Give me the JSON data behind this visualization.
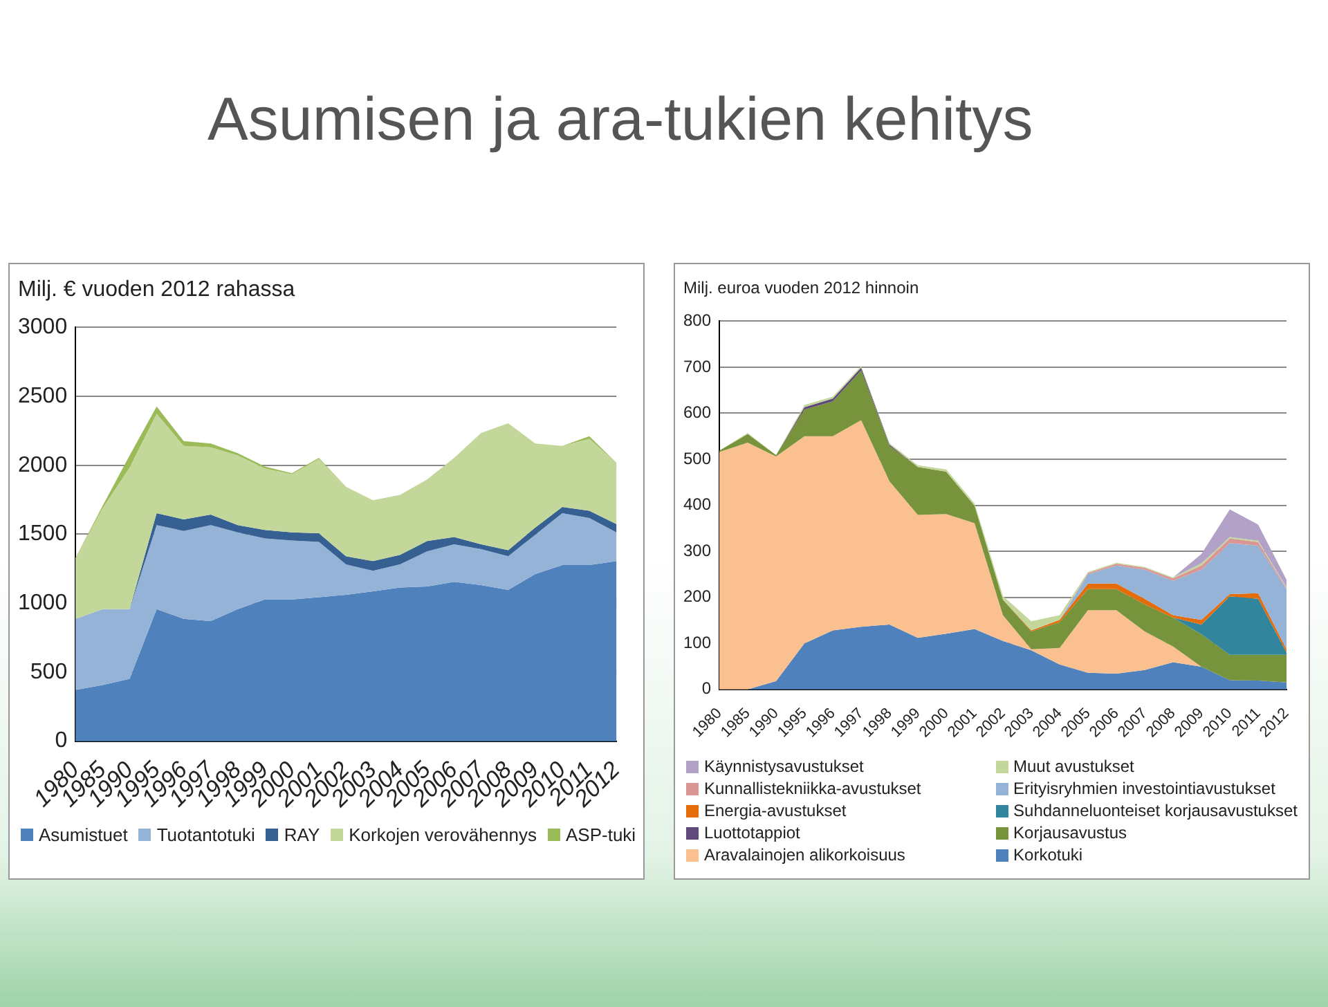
{
  "chart_data": [
    {
      "type": "area",
      "title": "Asumisen ja ara-tukien kehitys",
      "ylabel": "Milj. € vuoden 2012 rahassa",
      "categories": [
        "1980",
        "1985",
        "1990",
        "1995",
        "1996",
        "1997",
        "1998",
        "1999",
        "2000",
        "2001",
        "2002",
        "2003",
        "2004",
        "2005",
        "2006",
        "2007",
        "2008",
        "2009",
        "2010",
        "2011",
        "2012"
      ],
      "series": [
        {
          "name": "Asumistuet",
          "color": "#4f81bd",
          "values": [
            372,
            407,
            452,
            957,
            887,
            870,
            957,
            1027,
            1027,
            1044,
            1061,
            1086,
            1114,
            1121,
            1155,
            1131,
            1096,
            1211,
            1277,
            1277,
            1305
          ]
        },
        {
          "name": "Tuotantotuki",
          "color": "#95b3d7",
          "values": [
            515,
            550,
            505,
            609,
            637,
            696,
            557,
            442,
            428,
            400,
            220,
            149,
            167,
            254,
            272,
            261,
            244,
            285,
            376,
            341,
            209
          ]
        },
        {
          "name": "RAY",
          "color": "#366092",
          "values": [
            0,
            0,
            0,
            87,
            84,
            77,
            52,
            62,
            59,
            63,
            59,
            70,
            69,
            76,
            52,
            35,
            45,
            53,
            45,
            52,
            59
          ]
        },
        {
          "name": "Korkojen verovähennys",
          "color": "#c4d79b",
          "values": [
            442,
            731,
            1027,
            720,
            532,
            487,
            505,
            446,
            421,
            539,
            504,
            442,
            435,
            446,
            574,
            807,
            919,
            609,
            442,
            522,
            445
          ]
        },
        {
          "name": "ASP-tuki",
          "color": "#9bbb59",
          "values": [
            0,
            17,
            87,
            53,
            35,
            28,
            17,
            14,
            7,
            7,
            0,
            0,
            0,
            0,
            0,
            0,
            0,
            0,
            0,
            18,
            0
          ]
        }
      ],
      "stacked": true,
      "ylim": [
        0,
        3000
      ],
      "yticks": [
        0,
        500,
        1000,
        1500,
        2000,
        2500,
        3000
      ],
      "grid": "y",
      "legend": "bottom"
    },
    {
      "type": "area",
      "ylabel": "Milj. euroa vuoden 2012 hinnoin",
      "categories": [
        "1980",
        "1985",
        "1990",
        "1995",
        "1996",
        "1997",
        "1998",
        "1999",
        "2000",
        "2001",
        "2002",
        "2003",
        "2004",
        "2005",
        "2006",
        "2007",
        "2008",
        "2009",
        "2010",
        "2011",
        "2012"
      ],
      "series": [
        {
          "name": "Korkotuki",
          "color": "#4f81bd",
          "values": [
            0,
            0,
            18,
            100,
            128,
            136,
            141,
            112,
            121,
            131,
            105,
            85,
            54,
            36,
            34,
            42,
            59,
            49,
            20,
            19,
            15
          ]
        },
        {
          "name": "Aravalainojen alikorkoisuus",
          "color": "#fac090",
          "values": [
            516,
            536,
            488,
            450,
            422,
            449,
            311,
            267,
            260,
            230,
            56,
            2,
            36,
            136,
            138,
            84,
            34,
            0,
            null,
            null,
            null
          ]
        },
        {
          "name": "Korjausavustus",
          "color": "#77933c",
          "values": [
            3,
            19,
            3,
            58,
            76,
            108,
            77,
            104,
            92,
            38,
            34,
            39,
            56,
            46,
            46,
            59,
            63,
            71,
            55,
            56,
            60
          ]
        },
        {
          "name": "Luottotappiot",
          "color": "#604a7b",
          "values": [
            null,
            null,
            0,
            5,
            6,
            6,
            3,
            0,
            null,
            null,
            null,
            null,
            null,
            null,
            null,
            null,
            null,
            null,
            null,
            null,
            null
          ]
        },
        {
          "name": "Suhdanneluonteiset korjausavustukset",
          "color": "#31859c",
          "values": [
            null,
            null,
            null,
            null,
            null,
            null,
            null,
            null,
            null,
            null,
            null,
            null,
            null,
            null,
            null,
            null,
            0,
            21,
            127,
            122,
            5
          ]
        },
        {
          "name": "Energia-avustukset",
          "color": "#e46c0a",
          "values": [
            null,
            null,
            null,
            null,
            null,
            null,
            null,
            null,
            null,
            null,
            0,
            2,
            5,
            12,
            12,
            12,
            5,
            10,
            5,
            12,
            7
          ]
        },
        {
          "name": "Erityisryhmien investointiavustukset",
          "color": "#95b3d7",
          "values": [
            null,
            null,
            null,
            null,
            null,
            null,
            null,
            null,
            null,
            null,
            null,
            null,
            0,
            20,
            39,
            63,
            75,
            109,
            111,
            103,
            131
          ]
        },
        {
          "name": "Kunnallistekniikka-avustukset",
          "color": "#d99694",
          "values": [
            null,
            null,
            null,
            null,
            null,
            null,
            null,
            null,
            null,
            null,
            null,
            null,
            0,
            3,
            4,
            4,
            5,
            9,
            10,
            8,
            2
          ]
        },
        {
          "name": "Muut avustukset",
          "color": "#c3d69b",
          "values": [
            0,
            2,
            0,
            5,
            4,
            3,
            3,
            4,
            5,
            5,
            8,
            20,
            10,
            2,
            2,
            2,
            2,
            5,
            3,
            3,
            2
          ]
        },
        {
          "name": "Käynnistysavustukset",
          "color": "#b3a2c7",
          "values": [
            null,
            null,
            null,
            null,
            null,
            null,
            null,
            null,
            null,
            null,
            null,
            null,
            null,
            null,
            null,
            null,
            0,
            20,
            60,
            35,
            16
          ]
        }
      ],
      "stacked": true,
      "ylim": [
        0,
        800
      ],
      "yticks": [
        0,
        100,
        200,
        300,
        400,
        500,
        600,
        700,
        800
      ],
      "grid": "y",
      "legend": "bottom"
    }
  ]
}
